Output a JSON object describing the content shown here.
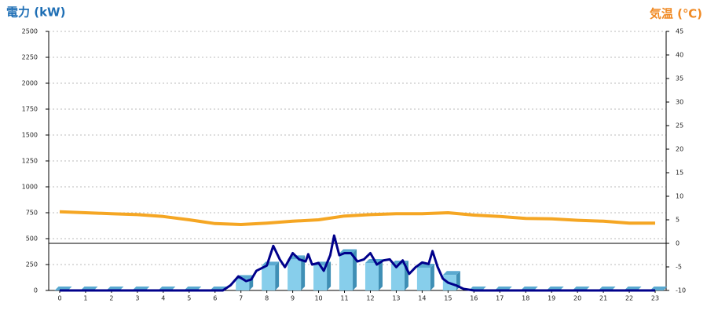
{
  "chart_data": {
    "type": "combo",
    "title": "電力 (kW)",
    "y2_title": "気温 (℃)",
    "categories": [
      "0",
      "1",
      "2",
      "3",
      "4",
      "5",
      "6",
      "7",
      "8",
      "9",
      "10",
      "11",
      "12",
      "13",
      "14",
      "15",
      "16",
      "17",
      "18",
      "19",
      "20",
      "21",
      "22",
      "23"
    ],
    "ylim": [
      0,
      2500
    ],
    "yticks": [
      0,
      250,
      500,
      750,
      1000,
      1250,
      1500,
      1750,
      2000,
      2250,
      2500
    ],
    "y2lim": [
      -10,
      45
    ],
    "y2ticks": [
      -10,
      -5,
      0,
      5,
      10,
      15,
      20,
      25,
      30,
      35,
      40,
      45
    ],
    "grid": true,
    "series": [
      {
        "type": "bar",
        "color": "#87ceeb",
        "values": [
          0,
          0,
          0,
          0,
          0,
          0,
          0,
          110,
          240,
          300,
          240,
          360,
          265,
          250,
          220,
          150,
          0,
          0,
          0,
          0,
          0,
          0,
          0,
          0
        ]
      },
      {
        "type": "line",
        "color": "#00008b",
        "x": [
          0,
          1,
          2,
          3,
          4,
          5,
          6,
          6.3,
          6.6,
          6.9,
          7.2,
          7.4,
          7.6,
          8.0,
          8.25,
          8.5,
          8.7,
          9.0,
          9.25,
          9.5,
          9.6,
          9.75,
          10.0,
          10.2,
          10.45,
          10.6,
          10.8,
          11.0,
          11.25,
          11.5,
          11.75,
          12.0,
          12.25,
          12.5,
          12.75,
          13.0,
          13.25,
          13.5,
          13.75,
          14.0,
          14.25,
          14.4,
          14.6,
          14.8,
          15.0,
          15.3,
          15.6,
          16,
          17,
          18,
          19,
          20,
          21,
          22,
          23
        ],
        "values": [
          0,
          0,
          0,
          0,
          0,
          0,
          0,
          0,
          50,
          136,
          90,
          106,
          190,
          240,
          430,
          300,
          225,
          360,
          300,
          280,
          350,
          250,
          265,
          190,
          340,
          530,
          340,
          360,
          360,
          280,
          300,
          360,
          250,
          290,
          300,
          225,
          290,
          160,
          225,
          270,
          255,
          380,
          225,
          114,
          75,
          50,
          15,
          0,
          0,
          0,
          0,
          0,
          0,
          0,
          0
        ]
      },
      {
        "type": "line",
        "axis": "y2",
        "color": "#f5a623",
        "values": [
          6.7,
          6.5,
          6.3,
          6.1,
          5.7,
          5.0,
          4.2,
          4.0,
          4.3,
          4.7,
          5.0,
          5.8,
          6.1,
          6.3,
          6.3,
          6.5,
          6.0,
          5.7,
          5.3,
          5.2,
          4.9,
          4.7,
          4.3,
          4.3
        ]
      }
    ]
  }
}
